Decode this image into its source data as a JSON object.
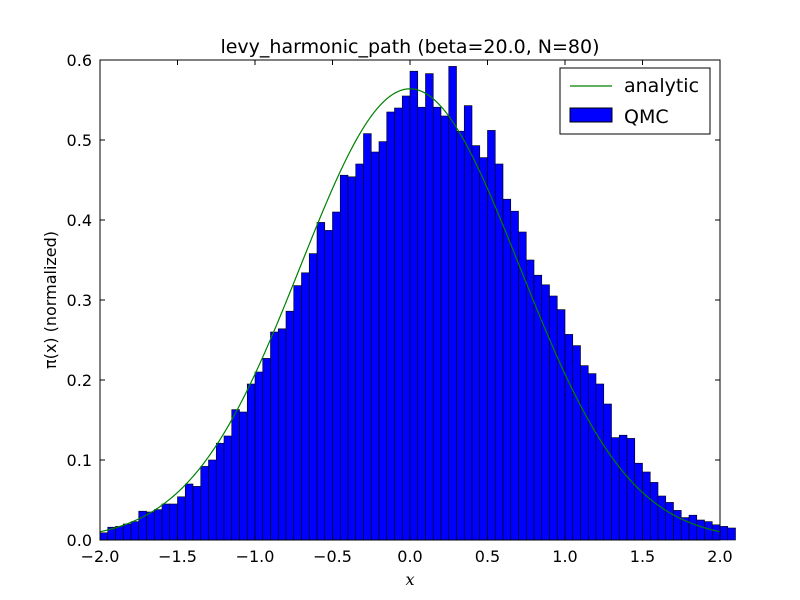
{
  "chart_data": {
    "type": "bar",
    "title": "levy_harmonic_path (beta=20.0, N=80)",
    "xlabel": "x",
    "ylabel": "π(x) (normalized)",
    "xlim": [
      -2.0,
      2.0
    ],
    "ylim": [
      0.0,
      0.6
    ],
    "x_ticks": [
      -2.0,
      -1.5,
      -1.0,
      -0.5,
      0.0,
      0.5,
      1.0,
      1.5,
      2.0
    ],
    "x_tick_labels": [
      "−2.0",
      "−1.5",
      "−1.0",
      "−0.5",
      "0.0",
      "0.5",
      "1.0",
      "1.5",
      "2.0"
    ],
    "y_ticks": [
      0.0,
      0.1,
      0.2,
      0.3,
      0.4,
      0.5,
      0.6
    ],
    "y_tick_labels": [
      "0.0",
      "0.1",
      "0.2",
      "0.3",
      "0.4",
      "0.5",
      "0.6"
    ],
    "grid": false,
    "legend_position": "top-right",
    "series": [
      {
        "name": "analytic",
        "type": "line",
        "color": "#008000",
        "function": "gaussian",
        "peak": 0.564,
        "sigma": 0.707
      },
      {
        "name": "QMC",
        "type": "histogram",
        "color": "#0000ff",
        "edge_color": "#000000",
        "bin_start": -2.0,
        "bin_width": 0.05,
        "values": [
          0.009,
          0.016,
          0.017,
          0.02,
          0.023,
          0.036,
          0.035,
          0.038,
          0.045,
          0.045,
          0.054,
          0.07,
          0.067,
          0.092,
          0.1,
          0.121,
          0.13,
          0.163,
          0.16,
          0.195,
          0.21,
          0.227,
          0.26,
          0.264,
          0.286,
          0.318,
          0.334,
          0.358,
          0.397,
          0.387,
          0.41,
          0.456,
          0.454,
          0.47,
          0.508,
          0.485,
          0.498,
          0.535,
          0.54,
          0.555,
          0.586,
          0.541,
          0.583,
          0.541,
          0.53,
          0.592,
          0.511,
          0.543,
          0.493,
          0.478,
          0.512,
          0.47,
          0.426,
          0.411,
          0.385,
          0.35,
          0.331,
          0.319,
          0.305,
          0.288,
          0.257,
          0.243,
          0.218,
          0.208,
          0.195,
          0.17,
          0.128,
          0.131,
          0.127,
          0.096,
          0.085,
          0.072,
          0.055,
          0.047,
          0.037,
          0.028,
          0.031,
          0.025,
          0.023,
          0.019,
          0.017,
          0.015
        ]
      }
    ]
  }
}
